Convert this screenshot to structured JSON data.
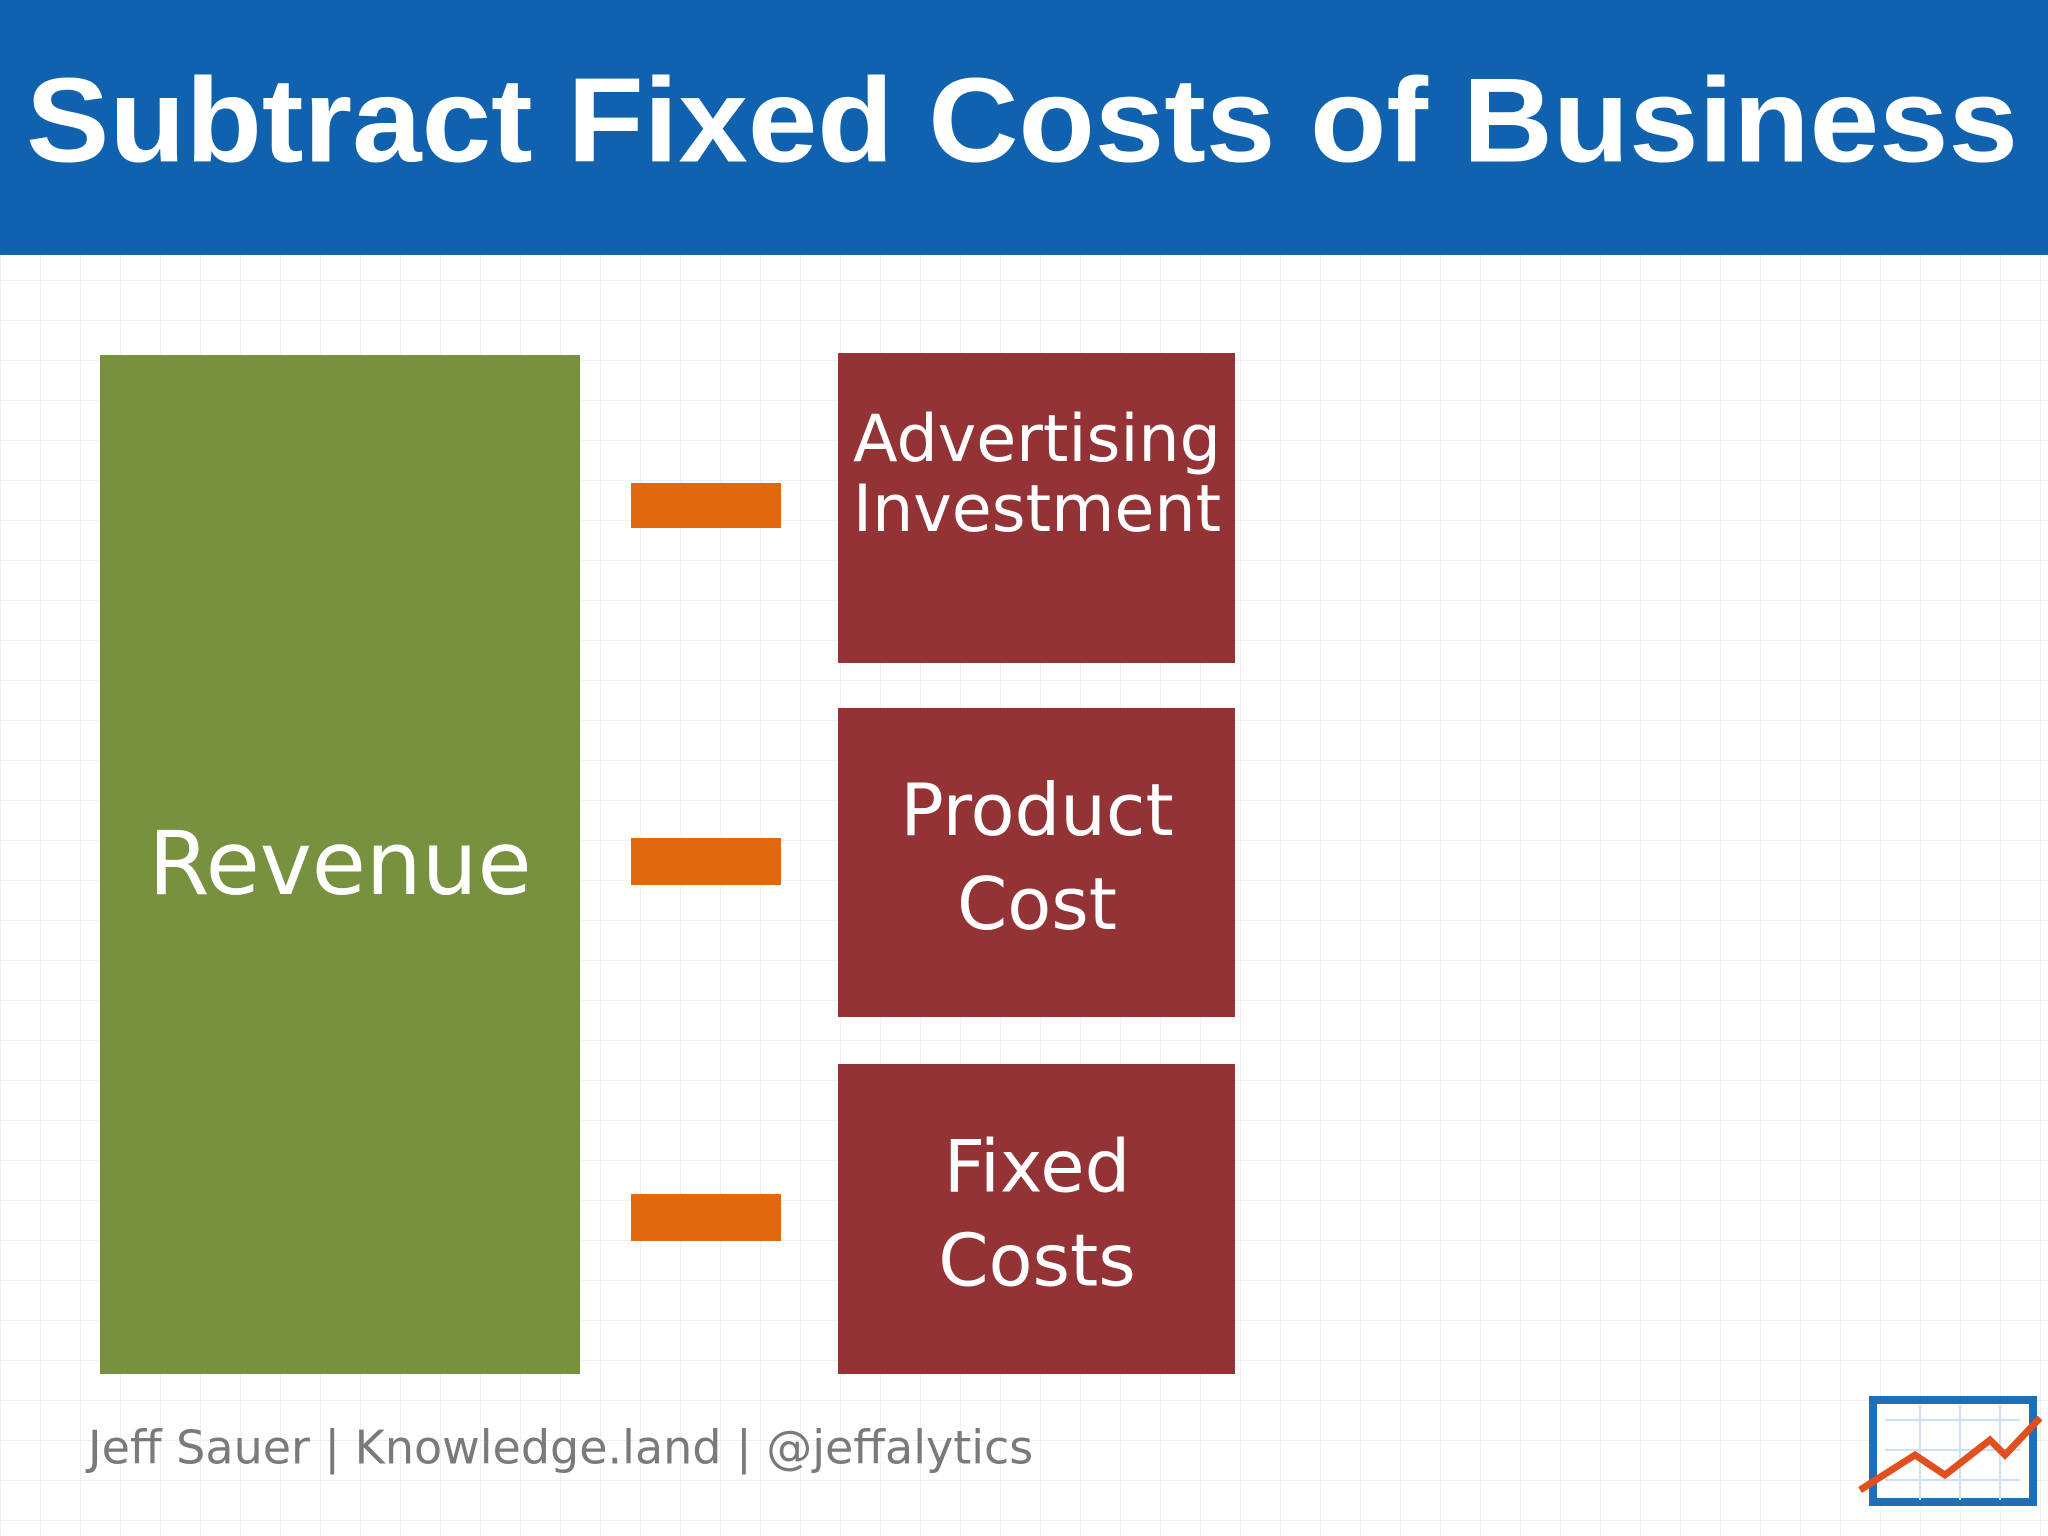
{
  "title": "Subtract Fixed Costs of Business",
  "revenue": {
    "label": "Revenue"
  },
  "costs": [
    {
      "lines": [
        "Advertising",
        "Investment"
      ]
    },
    {
      "lines": [
        "Product",
        "Cost"
      ]
    },
    {
      "lines": [
        "Fixed",
        "Costs"
      ]
    }
  ],
  "footer": "Jeff Sauer | Knowledge.land | @jeffalytics"
}
